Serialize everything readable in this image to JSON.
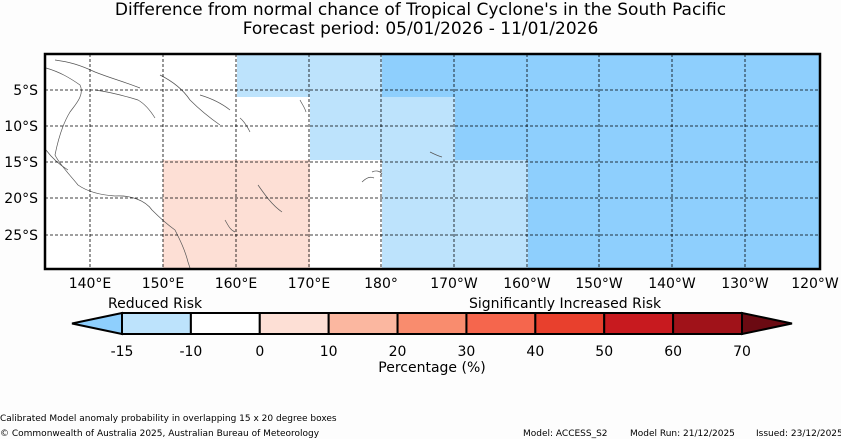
{
  "title_line1": "Difference from normal chance of Tropical Cyclone's in the South Pacific",
  "title_line2": "Forecast period: 05/01/2026 - 11/01/2026",
  "map": {
    "lat_labels": [
      "5°S",
      "10°S",
      "15°S",
      "20°S",
      "25°S"
    ],
    "lon_labels": [
      "140°E",
      "150°E",
      "160°E",
      "170°E",
      "180°",
      "170°W",
      "160°W",
      "150°W",
      "140°W",
      "130°W",
      "120°W"
    ],
    "colors": {
      "reduced_light": "#bde3fc",
      "reduced_medium": "#8ecffd",
      "increased_light": "#fddfd5",
      "neutral": "#ffffff"
    }
  },
  "colorbar": {
    "label_reduced": "Reduced Risk",
    "label_increased": "Significantly Increased Risk",
    "ticks": [
      "-15",
      "-10",
      "0",
      "10",
      "20",
      "30",
      "40",
      "50",
      "60",
      "70"
    ],
    "title": "Percentage (%)",
    "colors": [
      "#8ecffd",
      "#bde3fc",
      "#ffffff",
      "#fddfd5",
      "#fbb7a0",
      "#f98c6e",
      "#f5664d",
      "#e8402d",
      "#c81a1f",
      "#a01219",
      "#6b0a12"
    ]
  },
  "footer": {
    "note": "Calibrated Model anomaly probability in overlapping 15 x 20 degree boxes",
    "copyright": "© Commonwealth of Australia 2025, Australian Bureau of Meteorology",
    "model": "Model: ACCESS_S2",
    "model_run": "Model Run: 21/12/2025",
    "issued": "Issued: 23/12/2025"
  }
}
